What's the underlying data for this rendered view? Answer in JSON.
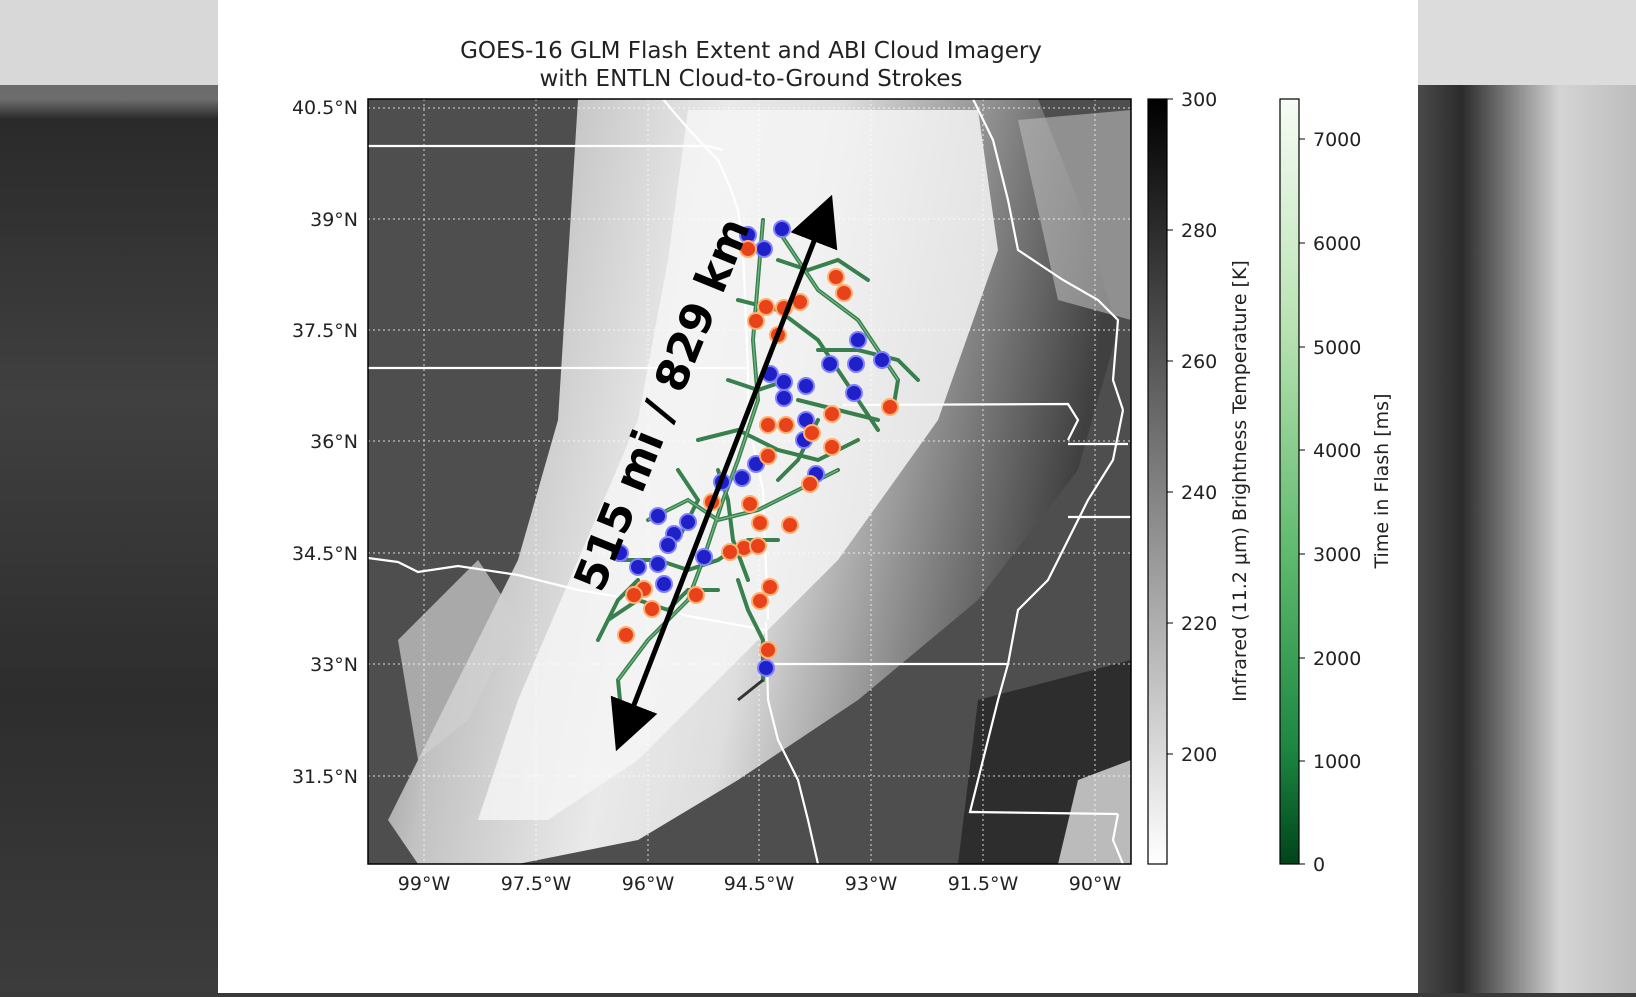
{
  "title_line1": "GOES-16 GLM Flash Extent and ABI Cloud Imagery",
  "title_line2": "with ENTLN Cloud-to-Ground Strokes",
  "lat_labels": [
    "40.5°N",
    "39°N",
    "37.5°N",
    "36°N",
    "34.5°N",
    "33°N",
    "31.5°N"
  ],
  "lon_labels": [
    "99°W",
    "97.5°W",
    "96°W",
    "94.5°W",
    "93°W",
    "91.5°W",
    "90°W"
  ],
  "annotation": "515 mi / 829 km",
  "colorbar_ir": {
    "label": "Infrared (11.2 μm) Brightness Temperature [K]",
    "ticks": [
      "300",
      "280",
      "260",
      "240",
      "220",
      "200"
    ]
  },
  "colorbar_time": {
    "label": "Time in Flash [ms]",
    "ticks": [
      "7000",
      "6000",
      "5000",
      "4000",
      "3000",
      "2000",
      "1000",
      "0"
    ]
  },
  "colors": {
    "positive_stroke": "#e8421a",
    "negative_stroke": "#2020c8",
    "flash_extent": "#2f7a45",
    "arrow": "#000000"
  }
}
